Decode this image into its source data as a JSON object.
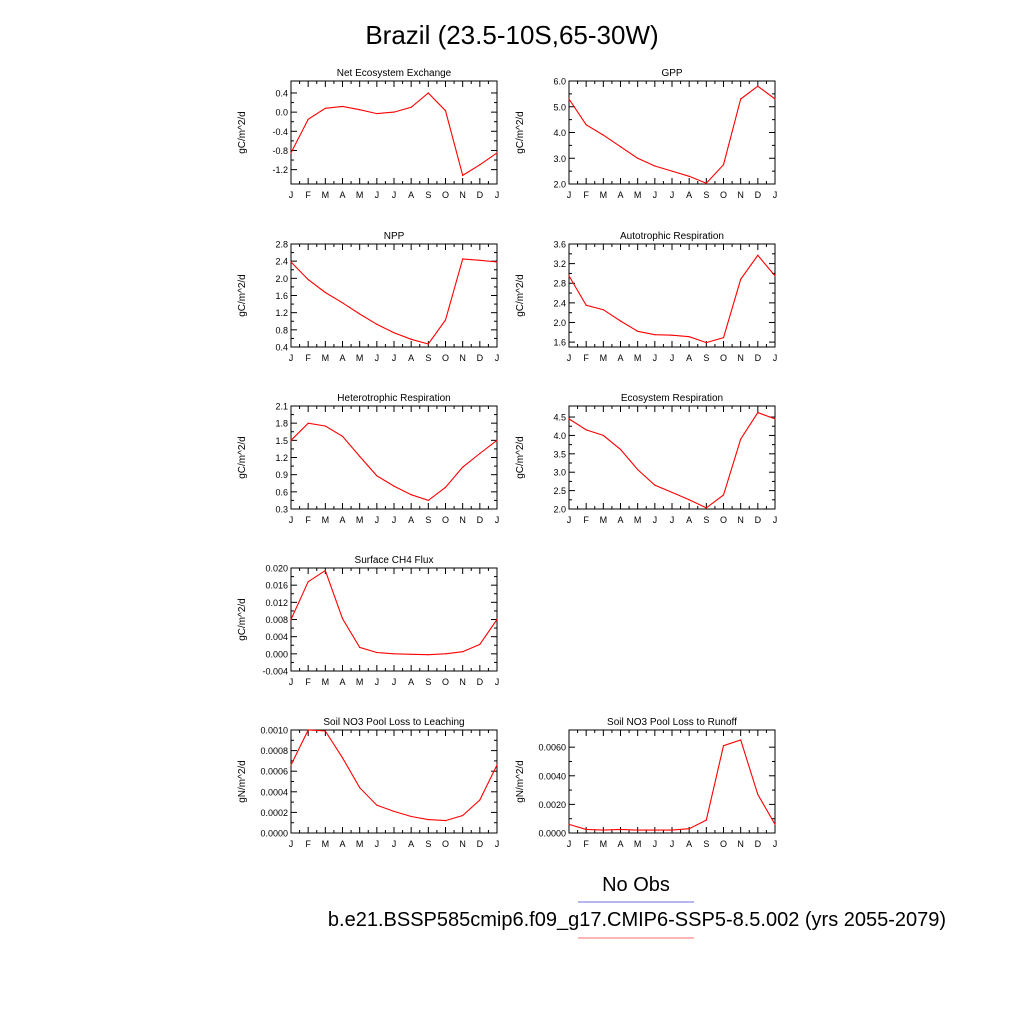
{
  "title": "Brazil (23.5-10S,65-30W)",
  "month_labels": [
    "J",
    "F",
    "M",
    "A",
    "M",
    "J",
    "J",
    "A",
    "S",
    "O",
    "N",
    "D",
    "J"
  ],
  "line_color": "#ff0000",
  "legend": {
    "items": [
      {
        "label": "No Obs",
        "color": "#8a8ae6"
      },
      {
        "label": "b.e21.BSSP585cmip6.f09_g17.CMIP6-SSP5-8.5.002 (yrs 2055-2079)",
        "color": "#ff8a8a"
      }
    ]
  },
  "chart_data": [
    {
      "type": "line",
      "title": "Net Ecosystem Exchange",
      "ylabel": "gC/m^2/d",
      "ylim": [
        -1.5,
        0.65
      ],
      "yticks": [
        -1.2,
        -0.8,
        -0.4,
        0.0,
        0.4
      ],
      "ytick_labels": [
        "-1.2",
        "-0.8",
        "-0.4",
        "0.0",
        "0.4"
      ],
      "values": [
        -0.85,
        -0.15,
        0.08,
        0.12,
        0.05,
        -0.03,
        0.0,
        0.1,
        0.4,
        0.03,
        -1.32,
        -1.1,
        -0.85
      ]
    },
    {
      "type": "line",
      "title": "GPP",
      "ylabel": "gC/m^2/d",
      "ylim": [
        2.0,
        6.0
      ],
      "yticks": [
        2.0,
        3.0,
        4.0,
        5.0,
        6.0
      ],
      "ytick_labels": [
        "2.0",
        "3.0",
        "4.0",
        "5.0",
        "6.0"
      ],
      "values": [
        5.3,
        4.3,
        3.9,
        3.45,
        3.0,
        2.7,
        2.5,
        2.3,
        2.03,
        2.75,
        5.3,
        5.8,
        5.3
      ]
    },
    {
      "type": "line",
      "title": "NPP",
      "ylabel": "gC/m^2/d",
      "ylim": [
        0.4,
        2.8
      ],
      "yticks": [
        0.4,
        0.8,
        1.2,
        1.6,
        2.0,
        2.4,
        2.8
      ],
      "ytick_labels": [
        "0.4",
        "0.8",
        "1.2",
        "1.6",
        "2.0",
        "2.4",
        "2.8"
      ],
      "values": [
        2.38,
        1.97,
        1.67,
        1.43,
        1.17,
        0.93,
        0.73,
        0.58,
        0.47,
        1.03,
        2.45,
        2.42,
        2.38
      ]
    },
    {
      "type": "line",
      "title": "Autotrophic Respiration",
      "ylabel": "gC/m^2/d",
      "ylim": [
        1.5,
        3.6
      ],
      "yticks": [
        1.6,
        2.0,
        2.4,
        2.8,
        3.2,
        3.6
      ],
      "ytick_labels": [
        "1.6",
        "2.0",
        "2.4",
        "2.8",
        "3.2",
        "3.6"
      ],
      "values": [
        2.95,
        2.35,
        2.26,
        2.03,
        1.82,
        1.75,
        1.74,
        1.71,
        1.59,
        1.69,
        2.88,
        3.37,
        2.95
      ]
    },
    {
      "type": "line",
      "title": "Heterotrophic Respiration",
      "ylabel": "gC/m^2/d",
      "ylim": [
        0.3,
        2.1
      ],
      "yticks": [
        0.3,
        0.6,
        0.9,
        1.2,
        1.5,
        1.8,
        2.1
      ],
      "ytick_labels": [
        "0.3",
        "0.6",
        "0.9",
        "1.2",
        "1.5",
        "1.8",
        "2.1"
      ],
      "values": [
        1.5,
        1.8,
        1.75,
        1.57,
        1.22,
        0.88,
        0.7,
        0.55,
        0.45,
        0.68,
        1.03,
        1.27,
        1.5
      ]
    },
    {
      "type": "line",
      "title": "Ecosystem Respiration",
      "ylabel": "gC/m^2/d",
      "ylim": [
        2.0,
        4.8
      ],
      "yticks": [
        2.0,
        2.5,
        3.0,
        3.5,
        4.0,
        4.5
      ],
      "ytick_labels": [
        "2.0",
        "2.5",
        "3.0",
        "3.5",
        "4.0",
        "4.5"
      ],
      "values": [
        4.45,
        4.15,
        4.0,
        3.62,
        3.07,
        2.65,
        2.45,
        2.25,
        2.03,
        2.38,
        3.9,
        4.62,
        4.45
      ]
    },
    {
      "type": "line",
      "title": "Surface CH4 Flux",
      "ylabel": "gC/m^2/d",
      "ylim": [
        -0.004,
        0.02
      ],
      "yticks": [
        -0.004,
        0.0,
        0.004,
        0.008,
        0.012,
        0.016,
        0.02
      ],
      "ytick_labels": [
        "-0.004",
        "0.000",
        "0.004",
        "0.008",
        "0.012",
        "0.016",
        "0.020"
      ],
      "values": [
        0.008,
        0.0168,
        0.0194,
        0.0082,
        0.0015,
        0.0003,
        0.0,
        -0.0001,
        -0.0002,
        0.0,
        0.0005,
        0.0022,
        0.008
      ]
    },
    {
      "type": "line",
      "title": "Soil NO3 Pool Loss to Leaching",
      "ylabel": "gN/m^2/d",
      "ylim": [
        0.0,
        0.001
      ],
      "yticks": [
        0.0,
        0.0002,
        0.0004,
        0.0006,
        0.0008,
        0.001
      ],
      "ytick_labels": [
        "0.0000",
        "0.0002",
        "0.0004",
        "0.0006",
        "0.0008",
        "0.0010"
      ],
      "values": [
        0.00066,
        0.001,
        0.00099,
        0.00073,
        0.00044,
        0.00027,
        0.00021,
        0.00016,
        0.00013,
        0.00012,
        0.00017,
        0.00032,
        0.00066
      ]
    },
    {
      "type": "line",
      "title": "Soil NO3 Pool Loss to Runoff",
      "ylabel": "gN/m^2/d",
      "ylim": [
        0.0,
        0.0072
      ],
      "yticks": [
        0.0,
        0.002,
        0.004,
        0.006
      ],
      "ytick_labels": [
        "0.0000",
        "0.0020",
        "0.0040",
        "0.0060"
      ],
      "values": [
        0.0006,
        0.00025,
        0.0002,
        0.00025,
        0.0002,
        0.0002,
        0.0002,
        0.0003,
        0.0009,
        0.0061,
        0.0065,
        0.0027,
        0.0006
      ]
    }
  ]
}
